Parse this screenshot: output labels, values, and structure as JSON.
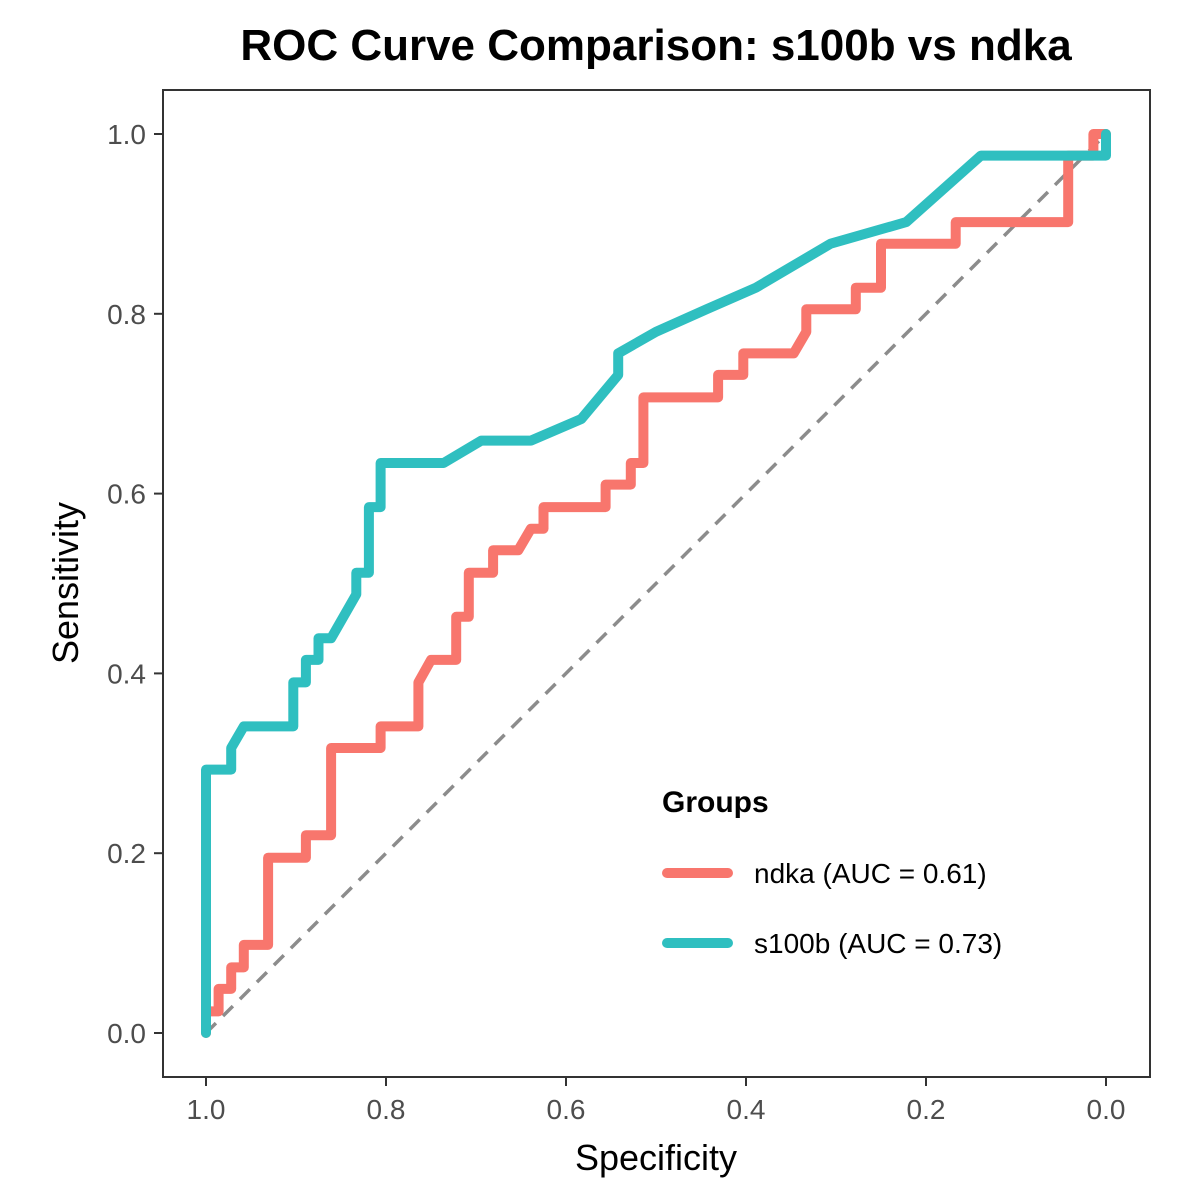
{
  "chart_data": {
    "type": "line",
    "title": "ROC Curve Comparison: s100b vs ndka",
    "xlabel": "Specificity",
    "ylabel": "Sensitivity",
    "xlim": [
      1.0,
      0.0
    ],
    "ylim": [
      0.0,
      1.0
    ],
    "x_reversed": true,
    "x_ticks": [
      1.0,
      0.8,
      0.6,
      0.4,
      0.2,
      0.0
    ],
    "x_tick_labels": [
      "1.0",
      "0.8",
      "0.6",
      "0.4",
      "0.2",
      "0.0"
    ],
    "y_ticks": [
      0.0,
      0.2,
      0.4,
      0.6,
      0.8,
      1.0
    ],
    "y_tick_labels": [
      "0.0",
      "0.2",
      "0.4",
      "0.6",
      "0.8",
      "1.0"
    ],
    "grid": false,
    "legend": {
      "title": "Groups",
      "position": "bottom-right"
    },
    "reference_line": {
      "style": "dashed",
      "color": "#8c8c8c",
      "from": [
        1.0,
        0.0
      ],
      "to": [
        0.0,
        1.0
      ]
    },
    "series": [
      {
        "name": "ndka (AUC = 0.61)",
        "color": "#F8766D",
        "points": [
          [
            1.0,
            0.0
          ],
          [
            1.0,
            0.024
          ],
          [
            0.986,
            0.024
          ],
          [
            0.986,
            0.049
          ],
          [
            0.972,
            0.049
          ],
          [
            0.972,
            0.073
          ],
          [
            0.958,
            0.073
          ],
          [
            0.958,
            0.098
          ],
          [
            0.931,
            0.098
          ],
          [
            0.931,
            0.195
          ],
          [
            0.889,
            0.195
          ],
          [
            0.889,
            0.22
          ],
          [
            0.861,
            0.22
          ],
          [
            0.861,
            0.317
          ],
          [
            0.806,
            0.317
          ],
          [
            0.806,
            0.341
          ],
          [
            0.764,
            0.341
          ],
          [
            0.764,
            0.39
          ],
          [
            0.75,
            0.415
          ],
          [
            0.722,
            0.415
          ],
          [
            0.722,
            0.463
          ],
          [
            0.708,
            0.463
          ],
          [
            0.708,
            0.512
          ],
          [
            0.681,
            0.512
          ],
          [
            0.681,
            0.537
          ],
          [
            0.653,
            0.537
          ],
          [
            0.639,
            0.561
          ],
          [
            0.625,
            0.561
          ],
          [
            0.625,
            0.585
          ],
          [
            0.556,
            0.585
          ],
          [
            0.556,
            0.61
          ],
          [
            0.528,
            0.61
          ],
          [
            0.528,
            0.634
          ],
          [
            0.514,
            0.634
          ],
          [
            0.514,
            0.707
          ],
          [
            0.431,
            0.707
          ],
          [
            0.431,
            0.732
          ],
          [
            0.403,
            0.732
          ],
          [
            0.403,
            0.756
          ],
          [
            0.347,
            0.756
          ],
          [
            0.333,
            0.78
          ],
          [
            0.333,
            0.805
          ],
          [
            0.278,
            0.805
          ],
          [
            0.278,
            0.829
          ],
          [
            0.25,
            0.829
          ],
          [
            0.25,
            0.878
          ],
          [
            0.167,
            0.878
          ],
          [
            0.167,
            0.902
          ],
          [
            0.042,
            0.902
          ],
          [
            0.042,
            0.976
          ],
          [
            0.014,
            0.976
          ],
          [
            0.014,
            1.0
          ],
          [
            0.0,
            1.0
          ]
        ]
      },
      {
        "name": "s100b (AUC = 0.73)",
        "color": "#2FBFC0",
        "points": [
          [
            1.0,
            0.0
          ],
          [
            1.0,
            0.293
          ],
          [
            0.972,
            0.293
          ],
          [
            0.972,
            0.317
          ],
          [
            0.958,
            0.341
          ],
          [
            0.903,
            0.341
          ],
          [
            0.903,
            0.39
          ],
          [
            0.889,
            0.39
          ],
          [
            0.889,
            0.415
          ],
          [
            0.875,
            0.415
          ],
          [
            0.875,
            0.439
          ],
          [
            0.861,
            0.439
          ],
          [
            0.833,
            0.488
          ],
          [
            0.833,
            0.512
          ],
          [
            0.819,
            0.512
          ],
          [
            0.819,
            0.585
          ],
          [
            0.806,
            0.585
          ],
          [
            0.806,
            0.634
          ],
          [
            0.736,
            0.634
          ],
          [
            0.694,
            0.659
          ],
          [
            0.639,
            0.659
          ],
          [
            0.583,
            0.683
          ],
          [
            0.542,
            0.732
          ],
          [
            0.542,
            0.756
          ],
          [
            0.5,
            0.78
          ],
          [
            0.444,
            0.805
          ],
          [
            0.389,
            0.829
          ],
          [
            0.306,
            0.878
          ],
          [
            0.222,
            0.902
          ],
          [
            0.139,
            0.976
          ],
          [
            0.0,
            0.976
          ],
          [
            0.0,
            1.0
          ]
        ]
      }
    ]
  }
}
